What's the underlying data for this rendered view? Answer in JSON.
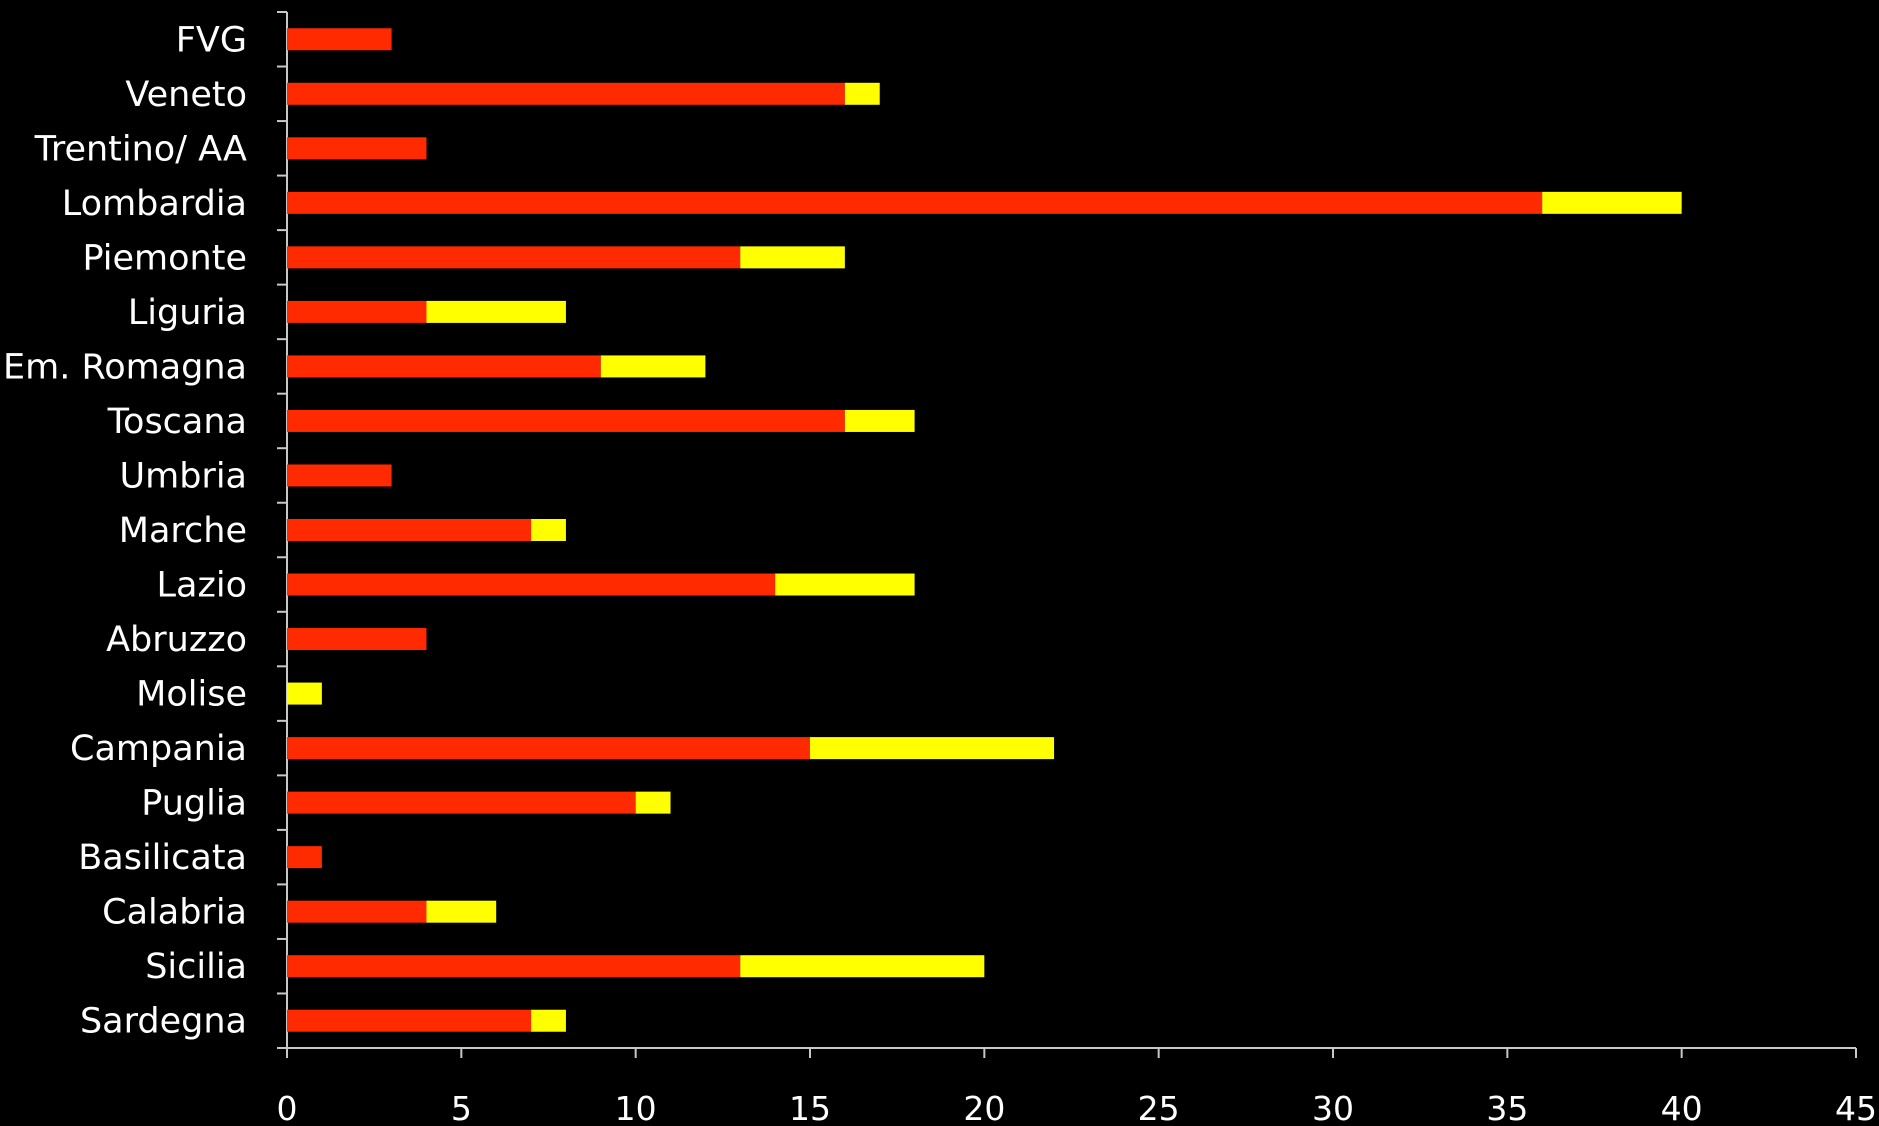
{
  "chart_data": {
    "type": "bar",
    "orientation": "horizontal",
    "stacked": true,
    "categories": [
      "FVG",
      "Veneto",
      "Trentino/ AA",
      "Lombardia",
      "Piemonte",
      "Liguria",
      "Em. Romagna",
      "Toscana",
      "Umbria",
      "Marche",
      "Lazio",
      "Abruzzo",
      "Molise",
      "Campania",
      "Puglia",
      "Basilicata",
      "Calabria",
      "Sicilia",
      "Sardegna"
    ],
    "series": [
      {
        "color": "#ff2a00",
        "values": [
          3,
          16,
          4,
          36,
          13,
          4,
          9,
          16,
          3,
          7,
          14,
          4,
          0,
          15,
          10,
          1,
          4,
          13,
          7
        ]
      },
      {
        "color": "#ffff00",
        "values": [
          0,
          1,
          0,
          4,
          3,
          4,
          3,
          2,
          0,
          1,
          4,
          0,
          1,
          7,
          1,
          0,
          2,
          7,
          1
        ]
      }
    ],
    "xlim": [
      0,
      45
    ],
    "xticks": [
      "0",
      "5",
      "10",
      "15",
      "20",
      "25",
      "30",
      "35",
      "40",
      "45"
    ],
    "grid": false,
    "legend": "none",
    "colors": {
      "background": "#000000",
      "text": "#ffffff",
      "axis": "#c8c8c8"
    }
  }
}
